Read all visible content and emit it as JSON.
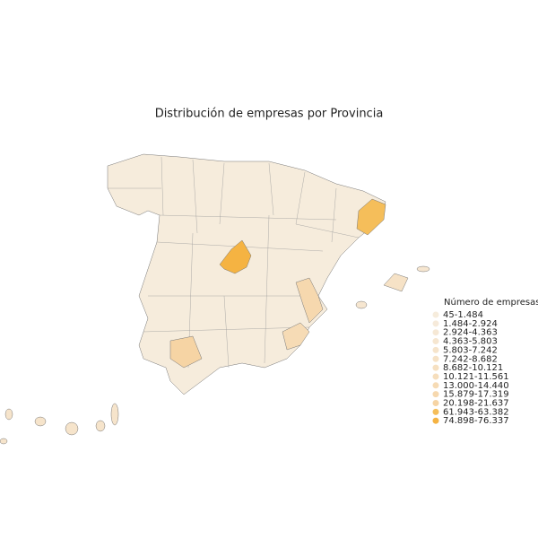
{
  "map": {
    "title": "Distribución de empresas por Provincia",
    "legend": {
      "title": "Número de empresas",
      "items": [
        {
          "label": "45-1.484",
          "color": "#f6ecdc"
        },
        {
          "label": "1.484-2.924",
          "color": "#f6eada"
        },
        {
          "label": "2.924-4.363",
          "color": "#f6e8d5"
        },
        {
          "label": "4.363-5.803",
          "color": "#f6e6d0"
        },
        {
          "label": "5.803-7.242",
          "color": "#f6e4cb"
        },
        {
          "label": "7.242-8.682",
          "color": "#f6e2c6"
        },
        {
          "label": "8.682-10.121",
          "color": "#f6e0c1"
        },
        {
          "label": "10.121-11.561",
          "color": "#f6debc"
        },
        {
          "label": "13.000-14.440",
          "color": "#f6dbb5"
        },
        {
          "label": "15.879-17.319",
          "color": "#f6d8ae"
        },
        {
          "label": "20.198-21.637",
          "color": "#f6d4a4"
        },
        {
          "label": "61.943-63.382",
          "color": "#f5be5a"
        },
        {
          "label": "74.898-76.337",
          "color": "#f5b342"
        }
      ]
    }
  }
}
